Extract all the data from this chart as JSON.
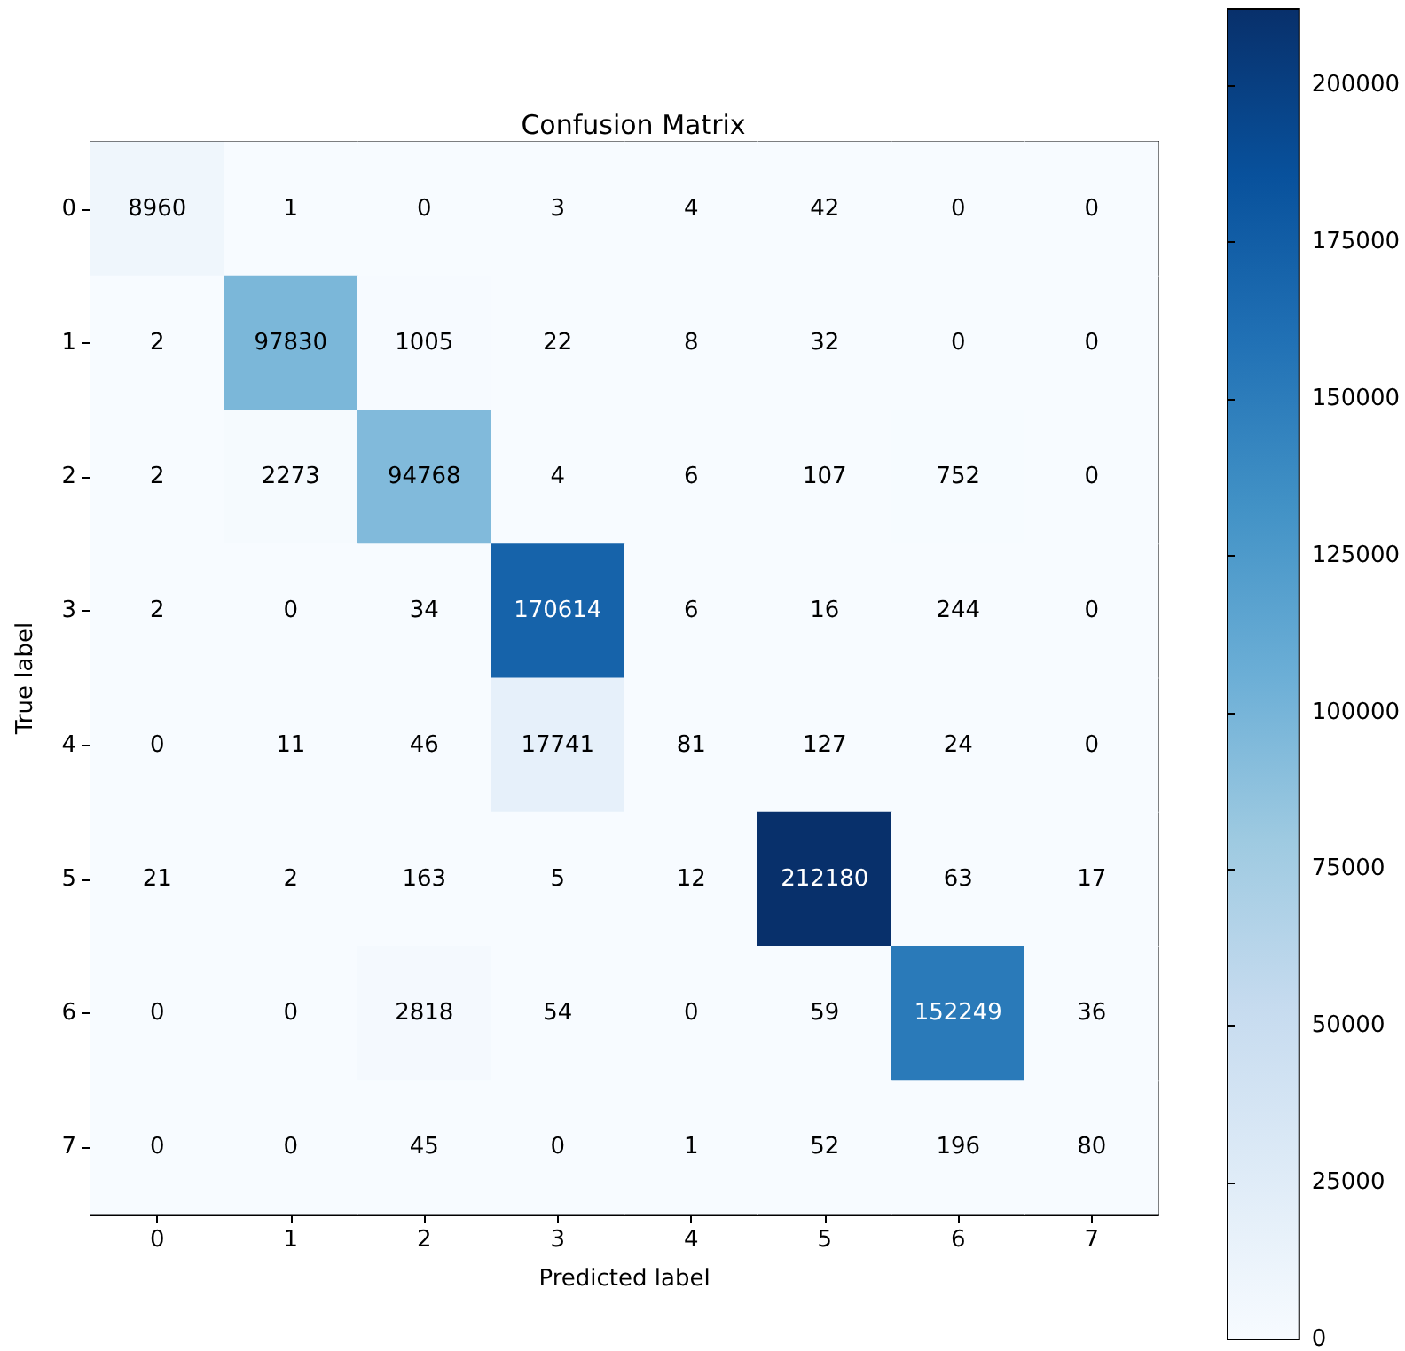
{
  "chart_data": {
    "type": "heatmap",
    "title": "Confusion Matrix",
    "xlabel": "Predicted label",
    "ylabel": "True label",
    "categories": [
      "0",
      "1",
      "2",
      "3",
      "4",
      "5",
      "6",
      "7"
    ],
    "y_categories": [
      "0",
      "1",
      "2",
      "3",
      "4",
      "5",
      "6",
      "7"
    ],
    "cells": [
      [
        8960,
        1,
        0,
        3,
        4,
        42,
        0,
        0
      ],
      [
        2,
        97830,
        1005,
        22,
        8,
        32,
        0,
        0
      ],
      [
        2,
        2273,
        94768,
        4,
        6,
        107,
        752,
        0
      ],
      [
        2,
        0,
        34,
        170614,
        6,
        16,
        244,
        0
      ],
      [
        0,
        11,
        46,
        17741,
        81,
        127,
        24,
        0
      ],
      [
        21,
        2,
        163,
        5,
        12,
        212180,
        63,
        17
      ],
      [
        0,
        0,
        2818,
        54,
        0,
        59,
        152249,
        36
      ],
      [
        0,
        0,
        45,
        0,
        1,
        52,
        196,
        80
      ]
    ],
    "data_labels": true,
    "clim": [
      0,
      212180
    ],
    "cticks": [
      0,
      25000,
      50000,
      75000,
      100000,
      125000,
      150000,
      175000,
      200000
    ]
  }
}
